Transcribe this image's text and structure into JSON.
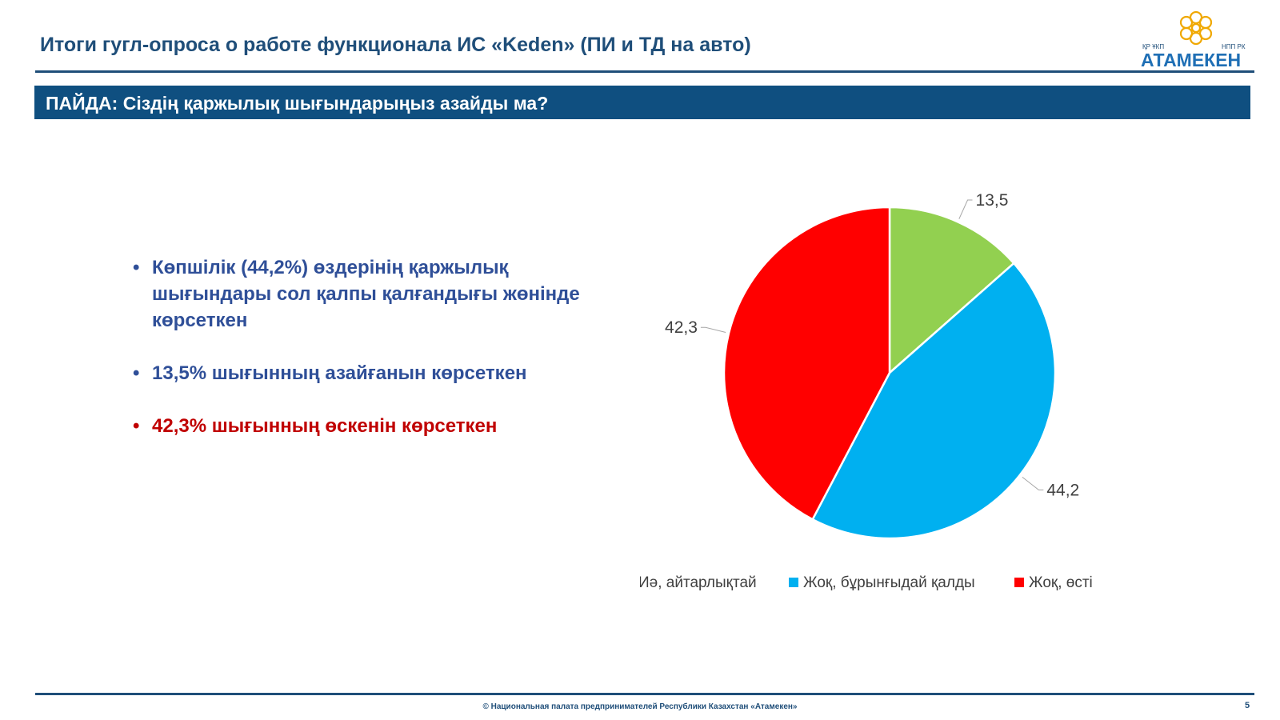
{
  "header": {
    "title": "Итоги гугл-опроса о работе функционала ИС «Keden» (ПИ и ТД на авто)"
  },
  "logo": {
    "sub_left": "ҚР ҰКП",
    "sub_right": "НПП РК",
    "name": "АТАМЕКЕН",
    "color": "#1f6fb5"
  },
  "banner": {
    "text": "ПАЙДА: Сіздің қаржылық шығындарыңыз азайды ма?",
    "color": "#0f4f80"
  },
  "bullets": [
    {
      "text": "Көпшілік (44,2%) өздерінің қаржылық шығындары сол қалпы қалғандығы жөнінде көрсеткен",
      "color": "#2f4f98"
    },
    {
      "text": "13,5% шығынның азайғанын көрсеткен",
      "color": "#2f4f98"
    },
    {
      "text": "42,3% шығынның өскенін көрсеткен",
      "color": "#c00000"
    }
  ],
  "chart_data": {
    "type": "pie",
    "title": "",
    "categories": [
      "Иә, айтарлықтай",
      "Жоқ, бұрынғыдай қалды",
      "Жоқ, өсті"
    ],
    "values": [
      13.5,
      44.2,
      42.3
    ],
    "value_labels": [
      "13,5",
      "44,2",
      "42,3"
    ],
    "colors": [
      "#92d050",
      "#00b0f0",
      "#ff0000"
    ],
    "start_angle": "12 o'clock, clockwise",
    "legend_position": "bottom"
  },
  "footer": {
    "text": "© Национальная палата предпринимателей Республики Казахстан «Атамекен»",
    "page": "5"
  }
}
